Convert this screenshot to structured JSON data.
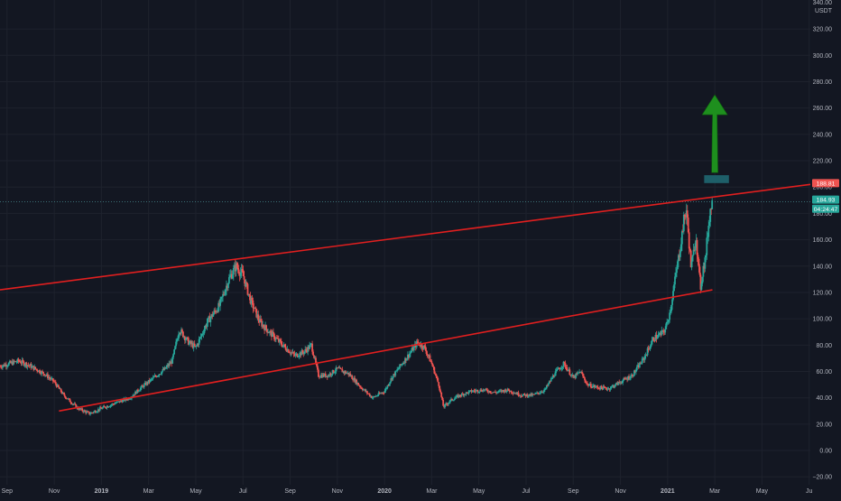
{
  "chart_data": {
    "type": "candlestick",
    "symbol_hint": "",
    "currency_label": "USDT",
    "axis_top_partial": "340.00",
    "y_ticks": [
      -20,
      0,
      20,
      40,
      60,
      80,
      100,
      120,
      140,
      160,
      180,
      200,
      220,
      240,
      260,
      280,
      300,
      320
    ],
    "y_tick_labels": [
      "−20.00",
      "0.00",
      "20.00",
      "40.00",
      "60.00",
      "80.00",
      "100.00",
      "120.00",
      "140.00",
      "160.00",
      "180.00",
      "200.00",
      "220.00",
      "240.00",
      "260.00",
      "280.00",
      "300.00",
      "320.00"
    ],
    "ylim": [
      -26,
      342
    ],
    "x_ticks": [
      {
        "label": "Sep",
        "t": 0.0
      },
      {
        "label": "Nov",
        "t": 2.0
      },
      {
        "label": "2019",
        "t": 4.0,
        "bold": true
      },
      {
        "label": "Mar",
        "t": 6.0
      },
      {
        "label": "May",
        "t": 8.0
      },
      {
        "label": "Jul",
        "t": 10.0
      },
      {
        "label": "Sep",
        "t": 12.0
      },
      {
        "label": "Nov",
        "t": 14.0
      },
      {
        "label": "2020",
        "t": 16.0,
        "bold": true
      },
      {
        "label": "Mar",
        "t": 18.0
      },
      {
        "label": "May",
        "t": 20.0
      },
      {
        "label": "Jul",
        "t": 22.0
      },
      {
        "label": "Sep",
        "t": 24.0
      },
      {
        "label": "Nov",
        "t": 26.0
      },
      {
        "label": "2021",
        "t": 28.0,
        "bold": true
      },
      {
        "label": "Mar",
        "t": 30.0
      },
      {
        "label": "May",
        "t": 32.0
      },
      {
        "label": "Ju",
        "t": 34.0
      }
    ],
    "xlim": [
      -0.3,
      34.05
    ],
    "price_path": [
      [
        -0.3,
        64
      ],
      [
        0.5,
        68
      ],
      [
        1.0,
        64
      ],
      [
        1.6,
        58
      ],
      [
        2.0,
        52
      ],
      [
        2.4,
        42
      ],
      [
        3.0,
        32
      ],
      [
        3.5,
        28
      ],
      [
        4.0,
        32
      ],
      [
        4.6,
        36
      ],
      [
        5.2,
        40
      ],
      [
        5.7,
        48
      ],
      [
        6.2,
        55
      ],
      [
        6.7,
        62
      ],
      [
        7.0,
        68
      ],
      [
        7.3,
        92
      ],
      [
        7.7,
        82
      ],
      [
        8.0,
        78
      ],
      [
        8.5,
        98
      ],
      [
        9.0,
        110
      ],
      [
        9.4,
        130
      ],
      [
        9.7,
        140
      ],
      [
        10.0,
        133
      ],
      [
        10.3,
        115
      ],
      [
        10.7,
        98
      ],
      [
        11.0,
        92
      ],
      [
        11.4,
        85
      ],
      [
        11.8,
        78
      ],
      [
        12.2,
        72
      ],
      [
        12.6,
        75
      ],
      [
        12.9,
        80
      ],
      [
        13.2,
        57
      ],
      [
        13.6,
        57
      ],
      [
        14.0,
        62
      ],
      [
        14.5,
        58
      ],
      [
        15.0,
        48
      ],
      [
        15.5,
        40
      ],
      [
        16.0,
        45
      ],
      [
        16.3,
        55
      ],
      [
        16.7,
        65
      ],
      [
        17.0,
        72
      ],
      [
        17.4,
        82
      ],
      [
        17.7,
        78
      ],
      [
        18.0,
        66
      ],
      [
        18.3,
        50
      ],
      [
        18.5,
        33
      ],
      [
        18.8,
        38
      ],
      [
        19.2,
        42
      ],
      [
        19.7,
        45
      ],
      [
        20.2,
        46
      ],
      [
        20.7,
        44
      ],
      [
        21.2,
        46
      ],
      [
        21.8,
        42
      ],
      [
        22.3,
        42
      ],
      [
        22.8,
        46
      ],
      [
        23.2,
        58
      ],
      [
        23.6,
        66
      ],
      [
        24.0,
        55
      ],
      [
        24.3,
        60
      ],
      [
        24.6,
        50
      ],
      [
        25.0,
        48
      ],
      [
        25.5,
        47
      ],
      [
        26.0,
        52
      ],
      [
        26.5,
        57
      ],
      [
        27.0,
        70
      ],
      [
        27.4,
        85
      ],
      [
        27.7,
        88
      ],
      [
        27.9,
        92
      ],
      [
        28.1,
        105
      ],
      [
        28.3,
        128
      ],
      [
        28.5,
        150
      ],
      [
        28.7,
        176
      ],
      [
        28.8,
        182
      ],
      [
        28.9,
        160
      ],
      [
        29.0,
        138
      ],
      [
        29.1,
        150
      ],
      [
        29.2,
        165
      ],
      [
        29.3,
        140
      ],
      [
        29.4,
        124
      ],
      [
        29.5,
        138
      ],
      [
        29.6,
        145
      ],
      [
        29.7,
        165
      ],
      [
        29.8,
        182
      ],
      [
        29.9,
        188.81
      ]
    ],
    "last_price": 188.81,
    "last_price_label": "188.81",
    "prev_close_label": "184.93",
    "countdown_label": "04:24:47",
    "upper_line": {
      "t1": -0.3,
      "v1": 122,
      "t2": 34.05,
      "v2": 202
    },
    "lower_line": {
      "t1": 2.2,
      "v1": 30,
      "t2": 29.9,
      "v2": 122
    },
    "annotation_box": {
      "t1": 29.55,
      "t2": 30.6,
      "v1": 203,
      "v2": 209
    },
    "annotation_arrow": {
      "t": 30.0,
      "v_from": 211,
      "v_to": 270
    },
    "colors": {
      "background": "#131722",
      "grid": "#1e222d",
      "axis_text": "#b2b5be",
      "up_candle": "#26a69a",
      "down_candle": "#ef5350",
      "trendline": "#e01f1f",
      "box": "#1e5f69",
      "arrow": "#1e8f1e",
      "price_tag_red": "#ef5350",
      "price_tag_green": "#26a69a"
    }
  }
}
